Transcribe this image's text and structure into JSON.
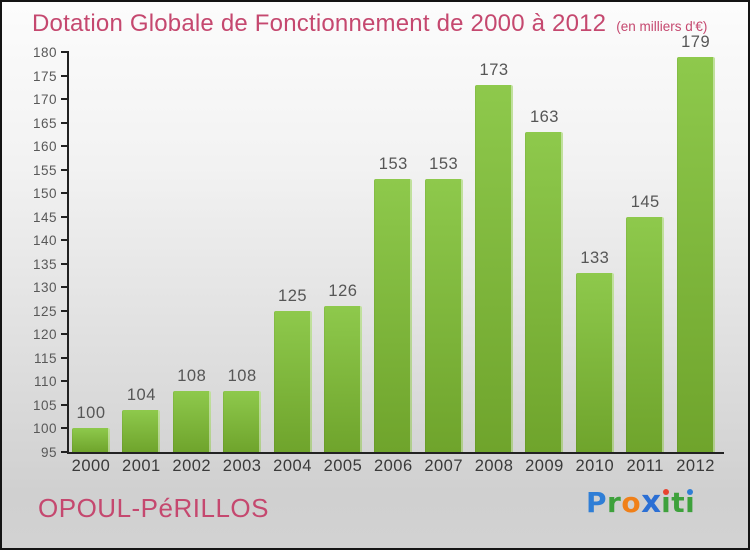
{
  "title": {
    "text": "Dotation Globale de Fonctionnement de 2000 à 2012",
    "unit_note": "(en milliers d'€)",
    "color": "#c5486f"
  },
  "footer": {
    "commune": "OPOUL-PéRILLOS",
    "color": "#c5486f"
  },
  "logo": {
    "name": "Proxiti",
    "segments": [
      {
        "text": "P",
        "color": "#2f7ed6"
      },
      {
        "text": "r",
        "color": "#3ea13c"
      },
      {
        "text": "o",
        "color": "#f08019"
      },
      {
        "text": "x",
        "color": "#2b6fd4",
        "style": "x"
      },
      {
        "text": "i",
        "color": "#3ea13c",
        "dot_color": "#e8432e"
      },
      {
        "text": "t",
        "color": "#3ea13c"
      },
      {
        "text": "i",
        "color": "#3ea13c",
        "dot_color": "#2f7ed6"
      }
    ]
  },
  "chart_data": {
    "type": "bar",
    "title": "Dotation Globale de Fonctionnement de 2000 à 2012",
    "unit": "en milliers d'€",
    "categories": [
      "2000",
      "2001",
      "2002",
      "2003",
      "2004",
      "2005",
      "2006",
      "2007",
      "2008",
      "2009",
      "2010",
      "2011",
      "2012"
    ],
    "values": [
      100,
      104,
      108,
      108,
      125,
      126,
      153,
      153,
      173,
      163,
      133,
      145,
      179
    ],
    "ylim": [
      95,
      180
    ],
    "ytick_step": 5,
    "yticks": [
      95,
      100,
      105,
      110,
      115,
      120,
      125,
      130,
      135,
      140,
      145,
      150,
      155,
      160,
      165,
      170,
      175,
      180
    ],
    "grid": false,
    "legend": false,
    "bar_color_top": "#8ec94c",
    "bar_color_bottom": "#6fa42c",
    "axis_color": "#222222",
    "value_label_color": "#565656",
    "tick_label_color": "#585858",
    "category_label_color": "#3a3a3a"
  }
}
